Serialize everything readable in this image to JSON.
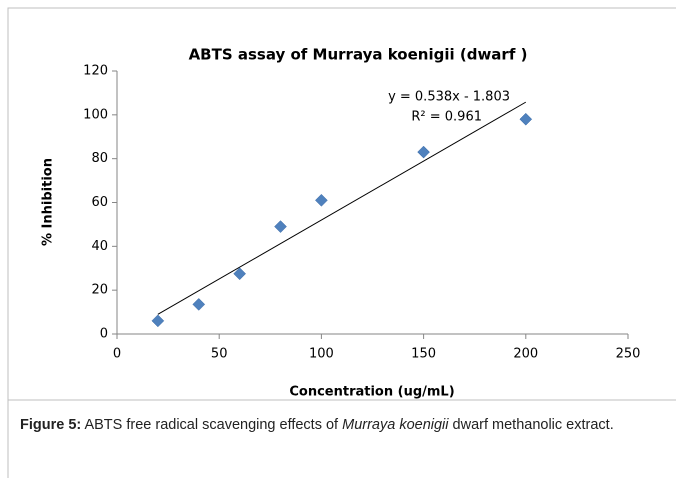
{
  "chart_data": {
    "type": "scatter",
    "title": "ABTS assay of Murraya koenigii (dwarf )",
    "xlabel": "Concentration (ug/mL)",
    "ylabel": "% Inhibition",
    "x": [
      20,
      40,
      60,
      80,
      100,
      150,
      200
    ],
    "values": [
      6,
      13.5,
      27.5,
      49,
      61,
      83,
      98
    ],
    "color": "#4f81bd",
    "xlim": [
      0,
      250
    ],
    "xticks": [
      0,
      50,
      100,
      150,
      200,
      250
    ],
    "ylim": [
      0,
      120
    ],
    "yticks": [
      0,
      20,
      40,
      60,
      80,
      100,
      120
    ],
    "grid": false,
    "trendline": {
      "equation": "y = 0.538x - 1.803",
      "r2": "R² = 0.961",
      "slope": 0.538,
      "intercept": -1.803
    }
  },
  "caption": {
    "label": "Figure 5:",
    "before": "ABTS free radical scavenging effects of",
    "species": "Murraya koenigii",
    "after": "dwarf methanolic extract."
  }
}
